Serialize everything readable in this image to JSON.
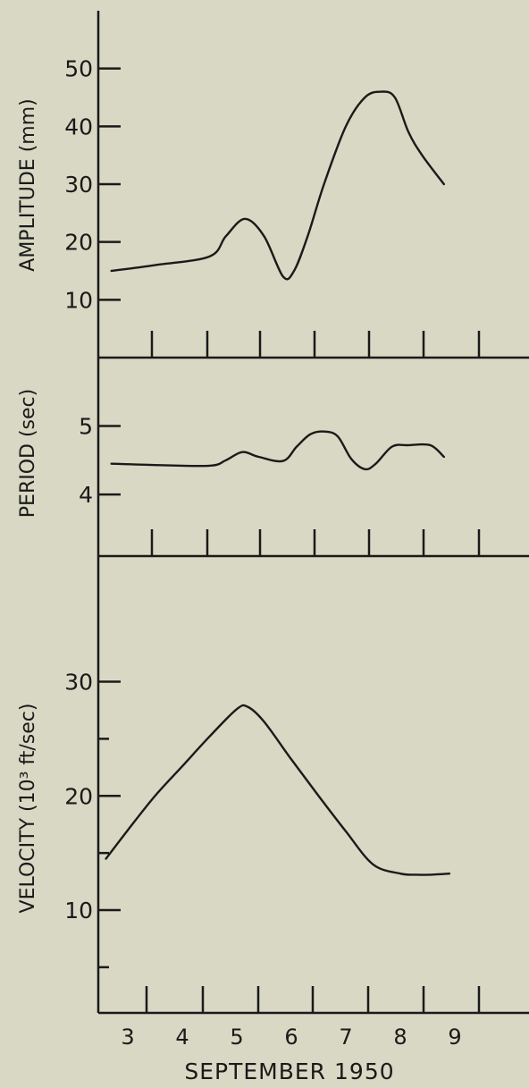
{
  "chart_data": [
    {
      "type": "line",
      "ylabel": "AMPLITUDE (mm)",
      "yticks": [
        "10",
        "20",
        "30",
        "40",
        "50"
      ],
      "ylim": [
        0,
        60
      ],
      "x": [
        2.7,
        3.5,
        4.5,
        4.8,
        5.15,
        5.5,
        5.85,
        6.05,
        6.3,
        6.6,
        7.0,
        7.35,
        7.65,
        7.9,
        8.15,
        8.4,
        8.8
      ],
      "values": [
        15,
        16,
        17.5,
        21,
        24,
        21,
        14,
        15,
        21,
        30,
        40,
        45,
        46,
        45,
        39,
        35,
        30
      ]
    },
    {
      "type": "line",
      "ylabel": "PERIOD (sec)",
      "yticks": [
        "4",
        "5"
      ],
      "ylim": [
        3.1,
        6
      ],
      "x": [
        2.7,
        3.5,
        4.5,
        4.8,
        5.1,
        5.4,
        5.85,
        6.1,
        6.35,
        6.6,
        6.85,
        7.1,
        7.35,
        7.55,
        7.85,
        8.15,
        8.55,
        8.8
      ],
      "values": [
        4.45,
        4.43,
        4.42,
        4.5,
        4.62,
        4.55,
        4.49,
        4.7,
        4.88,
        4.92,
        4.85,
        4.52,
        4.37,
        4.45,
        4.7,
        4.72,
        4.72,
        4.55
      ]
    },
    {
      "type": "line",
      "ylabel": "VELOCITY (10³ ft/sec)",
      "yticks": [
        "10",
        "20",
        "30"
      ],
      "ylim": [
        1,
        41
      ],
      "x": [
        2.6,
        3.0,
        3.5,
        4.0,
        4.5,
        5.0,
        5.2,
        5.5,
        6.0,
        6.5,
        7.0,
        7.5,
        8.0,
        8.3,
        8.55,
        8.9
      ],
      "values": [
        14.5,
        17,
        20,
        22.6,
        25.2,
        27.6,
        27.8,
        26.5,
        23.2,
        20,
        16.9,
        14,
        13.2,
        13.1,
        13.1,
        13.2
      ]
    }
  ],
  "x_axis": {
    "labels": [
      "3",
      "4",
      "5",
      "6",
      "7",
      "8",
      "9"
    ],
    "title": "SEPTEMBER 1950"
  }
}
